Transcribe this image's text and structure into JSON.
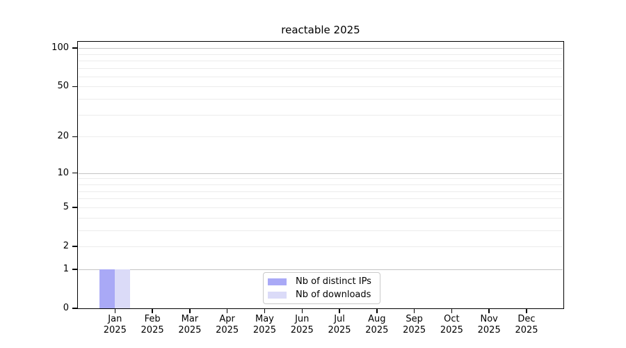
{
  "chart_data": {
    "type": "bar",
    "title": "reactable 2025",
    "categories": [
      "Jan 2025",
      "Feb 2025",
      "Mar 2025",
      "Apr 2025",
      "May 2025",
      "Jun 2025",
      "Jul 2025",
      "Aug 2025",
      "Sep 2025",
      "Oct 2025",
      "Nov 2025",
      "Dec 2025"
    ],
    "x_axis": {
      "months": [
        "Jan",
        "Feb",
        "Mar",
        "Apr",
        "May",
        "Jun",
        "Jul",
        "Aug",
        "Sep",
        "Oct",
        "Nov",
        "Dec"
      ],
      "year": "2025"
    },
    "y_axis": {
      "scale": "log10(1+y)",
      "tick_values": [
        100,
        50,
        20,
        10,
        5,
        2,
        1,
        0
      ],
      "decade_gridlines": [
        1,
        10,
        100
      ],
      "minor_gridlines": [
        2,
        3,
        4,
        5,
        6,
        7,
        8,
        9,
        20,
        30,
        40,
        50,
        60,
        70,
        80,
        90
      ],
      "range": [
        0,
        112
      ]
    },
    "series": [
      {
        "name": "Nb of distinct IPs",
        "color": "#a9a9f6",
        "values": [
          1,
          0,
          0,
          0,
          0,
          0,
          0,
          0,
          0,
          0,
          0,
          0
        ]
      },
      {
        "name": "Nb of downloads",
        "color": "#dbdbf8",
        "values": [
          1,
          0,
          0,
          0,
          0,
          0,
          0,
          0,
          0,
          0,
          0,
          0
        ]
      }
    ],
    "legend": {
      "position": "bottom-center",
      "items": [
        "Nb of distinct IPs",
        "Nb of downloads"
      ]
    },
    "grid": true
  },
  "colors": {
    "background": "#ffffff",
    "axis": "#000000",
    "text": "#000000",
    "decade_gridline": "#c4c4c4",
    "minor_gridline": "#ececec",
    "legend_border": "#c9c9c9"
  }
}
